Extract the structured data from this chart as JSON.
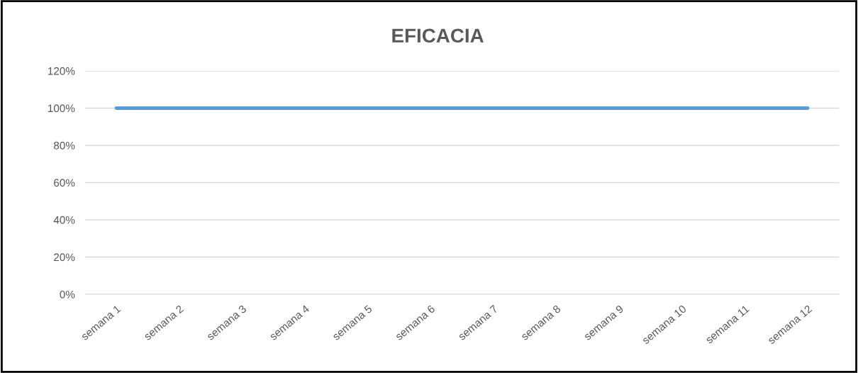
{
  "chart_data": {
    "type": "line",
    "title": "EFICACIA",
    "categories": [
      "semana 1",
      "semana 2",
      "semana 3",
      "semana 4",
      "semana 5",
      "semana 6",
      "semana 7",
      "semana 8",
      "semana 9",
      "semana 10",
      "semana 11",
      "semana 12"
    ],
    "series": [
      {
        "color": "#5b9bd5",
        "values": [
          100,
          100,
          100,
          100,
          100,
          100,
          100,
          100,
          100,
          100,
          100,
          100
        ]
      }
    ],
    "ylim": [
      0,
      120
    ],
    "yticks": [
      {
        "value": 0,
        "label": "0%"
      },
      {
        "value": 20,
        "label": "20%"
      },
      {
        "value": 40,
        "label": "40%"
      },
      {
        "value": 60,
        "label": "60%"
      },
      {
        "value": 80,
        "label": "80%"
      },
      {
        "value": 100,
        "label": "100%"
      },
      {
        "value": 120,
        "label": "120%"
      }
    ],
    "grid": "y",
    "marker": "none",
    "line_style": "solid"
  }
}
